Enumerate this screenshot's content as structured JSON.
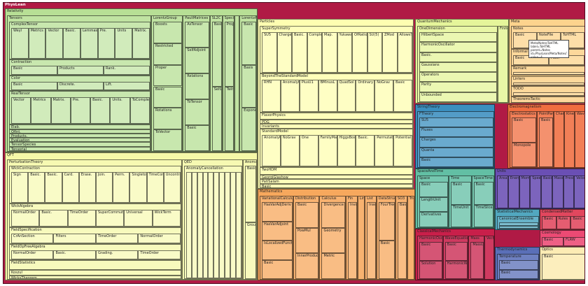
{
  "chart_data": {
    "type": "treemap",
    "root": "PhysLean",
    "groups": [
      {
        "name": "Relativity",
        "color": "#b7df95",
        "children": [
          {
            "name": "Tensors",
            "children": [
              {
                "name": "ComplexTensor",
                "children": [
                  "Weyl",
                  "Metrics",
                  "Vector",
                  "Basic.",
                  "Lemmas.",
                  "Pre.",
                  "Units",
                  "Matrix."
                ]
              },
              {
                "name": "Contraction",
                "children": [
                  "Basic",
                  "Products",
                  "Rank."
                ]
              },
              {
                "name": "Color",
                "children": [
                  "Basic",
                  "Discrete.",
                  "Lift."
                ]
              },
              {
                "name": "RealTensor",
                "children": [
                  "Vector",
                  "Metrics",
                  "Matrix.",
                  "Pre.",
                  "Basic.",
                  "Units.",
                  "ToComplex"
                ]
              },
              {
                "name": "Elab."
              },
              {
                "name": "OfInt."
              },
              {
                "name": "Products."
              },
              {
                "name": "Evaluation"
              },
              {
                "name": "TensorSpecies"
              },
              {
                "name": "Tensorial"
              }
            ]
          },
          {
            "name": "LorentzGroup",
            "children": [
              "Boosts",
              "Restricted",
              "Proper",
              "Basic",
              "Rotations",
              "ToVector"
            ]
          },
          {
            "name": "PauliMatrices",
            "children": [
              "AsTensor",
              "SelfAdjoint",
              "Relations",
              "ToTensor",
              "Basic"
            ]
          },
          {
            "name": "SL2C",
            "children": [
              "Basic",
              "SelfAdjoint"
            ]
          },
          {
            "name": "Special",
            "children": [
              "ProperTime",
              "TwinParadox"
            ]
          },
          {
            "name": "Bispinors"
          },
          {
            "name": "LorentzAlgebra",
            "children": [
              "Basic",
              "Basis",
              "ExponentialMap"
            ]
          }
        ]
      },
      {
        "name": "Particles",
        "color": "#fefeb1",
        "children": [
          {
            "name": "SuperSymmetry",
            "children": [
              "SU5",
              "Charges",
              "Basic.",
              "Completion",
              "Map.",
              "Yukawa",
              "OfRational",
              "SU(5)",
              "ZMod",
              "AllowsTerm"
            ]
          },
          {
            "name": "BeyondTheStandardModel",
            "children": [
              "RHN",
              "AnomalyCancellation",
              "PlusU1",
              "BMinusL",
              "QuadSol",
              "Ordinary",
              "NoGrav",
              "Basic"
            ]
          },
          {
            "name": "FlavorPhysics",
            "children": [
              "CKMMatrix"
            ]
          },
          {
            "name": "PDG"
          },
          {
            "name": "Invariants"
          },
          {
            "name": "StandardModel",
            "children": [
              "AnomalyCancellation",
              "NoGrav",
              "One",
              "FamilyMaps",
              "HiggsBoson",
              "Basic.",
              "Permutations",
              "Potential"
            ]
          },
          {
            "name": "TwoHDM",
            "children": [
              "GaugeOrbit"
            ]
          },
          {
            "name": "GeorgiGlashow"
          },
          {
            "name": "PatiSalam"
          },
          {
            "name": "Basic"
          }
        ]
      },
      {
        "name": "QuantumMechanics",
        "color": "#e5f59a",
        "children": [
          {
            "name": "OneDimension",
            "children": [
              "HilbertSpace",
              "HarmonicOscillator",
              "Basic.",
              "Gaussians",
              "Operators",
              "Parity",
              "Unbounded"
            ]
          },
          {
            "name": "FiniteTarget"
          }
        ]
      },
      {
        "name": "Meta",
        "color": "#fdd38d",
        "children": [
          {
            "name": "Notes",
            "children": [
              "Basic",
              "NoteFile",
              "ToHTML"
            ]
          },
          {
            "name": "Informal",
            "children": [
              "Basic",
              "Post."
            ]
          },
          {
            "name": "Remark",
            "children": [
              "Basic"
            ]
          },
          {
            "name": "Linters",
            "children": [
              "Sorry"
            ]
          },
          {
            "name": "TODO",
            "children": [
              "Basic"
            ]
          },
          {
            "name": "TheoremsTactic"
          }
        ]
      },
      {
        "name": "StringTheory",
        "color": "#3b8fbf",
        "children": [
          {
            "name": "FTheory",
            "children": [
              "SU5",
              "Fluxes",
              "Charges",
              "Quanta",
              "Basic"
            ]
          }
        ]
      },
      {
        "name": "ClassicalMechanics_",
        "label": "Electromagnetism",
        "color": "#f06e40",
        "children": [
          {
            "name": "Electrostatics",
            "children": [
              "Basic",
              "Monopole"
            ]
          },
          {
            "name": "PointParticle",
            "children": [
              "Basic"
            ]
          },
          {
            "name": "Charge"
          },
          {
            "name": "Kinematics"
          },
          {
            "name": "Wave"
          }
        ]
      },
      {
        "name": "SpaceAndTime",
        "color": "#62bfa4",
        "children": [
          {
            "name": "Space",
            "children": [
              "Basic",
              "LengthUnit",
              "Derivatives"
            ]
          },
          {
            "name": "Time",
            "children": [
              "Basic",
              "TimeUnit"
            ]
          },
          {
            "name": "SpaceTime",
            "children": [
              "Basic",
              "TimeSlice"
            ]
          }
        ]
      },
      {
        "name": "Units",
        "color": "#6a4fb4",
        "children": [
          "Area",
          "Energy",
          "Momentum",
          "Speed",
          "Basic",
          "Mass",
          "Pressure",
          "Velocity"
        ]
      },
      {
        "name": "StatisticalMechanics",
        "color": "#52a8c0",
        "children": [
          {
            "name": "CanonicalEnsemble",
            "children": [
              "Basic",
              "TwoState"
            ]
          }
        ]
      },
      {
        "name": "CondensedMatter",
        "color": "#e2475e",
        "children": [
          "Basic",
          "Rules",
          "Basic"
        ]
      },
      {
        "name": "Cosmology",
        "color": "#ec4a74",
        "children": [
          "Basic",
          "FLRW"
        ]
      },
      {
        "name": "ClassicalMechanics",
        "color": "#c81f4a",
        "children": [
          {
            "name": "HarmonicOscillator",
            "children": [
              "Basic",
              "Solution"
            ]
          },
          {
            "name": "WaveEquation",
            "children": [
              "Basic",
              "HarmonicWave"
            ]
          },
          {
            "name": "Mass",
            "children": [
              "MassUnit"
            ]
          },
          {
            "name": "VectorFields"
          }
        ]
      },
      {
        "name": "Thermodynamics",
        "color": "#5a6fb8",
        "children": [
          {
            "name": "Temperature",
            "children": [
              "Basic",
              "Basic"
            ]
          }
        ]
      },
      {
        "name": "Optics",
        "color": "#fcecb4",
        "children": [
          "Basic"
        ]
      },
      {
        "name": "QFT",
        "color": "#f5f8a8",
        "children": [
          {
            "name": "PerturbationTheory",
            "children": [
              {
                "name": "WickContraction",
                "children": [
                  "Sign",
                  "Basic.",
                  "Basic.",
                  "Card.",
                  "Erase.",
                  "Join.",
                  "Perm.",
                  "Singleton",
                  "TimeContract",
                  "Uncontracted"
                ]
              },
              {
                "name": "WickAlgebra",
                "children": [
                  "NormalOrder",
                  "Basic.",
                  "TimeOrder",
                  "SuperCommute",
                  "Universal",
                  "WickTerm"
                ]
              },
              {
                "name": "FieldSpecification",
                "children": [
                  "CrAnSection",
                  "Filters",
                  "TimeOrder",
                  "NormalOrder"
                ]
              },
              {
                "name": "FieldOpFreeAlgebra",
                "children": [
                  "NormalOrder",
                  "Basic.",
                  "Grading.",
                  "TimeOrder"
                ]
              },
              {
                "name": "FieldStatistics",
                "children": [
                  "Basic.",
                  "OfList"
                ]
              },
              {
                "name": "Koszul",
                "children": [
                  "KoszulSign"
                ]
              },
              {
                "name": "WicksTheorem"
              }
            ]
          },
          {
            "name": "QED",
            "children": [
              {
                "name": "AnomalyCancellation",
                "children": [
                  "Basic",
                  "Permutations",
                  "LowDim",
                  "Even",
                  "Odd",
                  "LineInCubic",
                  "Sorts",
                  "VectorLike",
                  "ConstAbs",
                  "BasisLinear"
                ]
              }
            ]
          },
          {
            "name": "AnomalyCancellation",
            "children": [
              "Basic",
              "GroupActions"
            ]
          }
        ]
      },
      {
        "name": "Mathematics",
        "color": "#f7a85d",
        "children": [
          {
            "name": "VariationalCalculus",
            "children": [
              "HasVarAdjDeriv",
              "HasVarAdjoint",
              "IsLocalizedFunction",
              "Basic"
            ]
          },
          {
            "name": "Distribution",
            "children": [
              "Basic",
              "PowMul",
              "InnerProductSpace"
            ]
          },
          {
            "name": "Calculus",
            "children": [
              "Divergence",
              "Geometry",
              "Metric"
            ]
          },
          {
            "name": "Fin",
            "children": [
              "Involutions"
            ]
          },
          {
            "name": "LinearMaps"
          },
          {
            "name": "List",
            "children": [
              "InsertionSort"
            ]
          },
          {
            "name": "DataStructures",
            "children": [
              "FourTree",
              "Basic"
            ]
          },
          {
            "name": "SO3",
            "children": [
              "Basic"
            ]
          },
          {
            "name": "Trigonometry"
          }
        ]
      }
    ],
    "tooltip": {
      "lines": [
        "Meta/Notes/ToHTML",
        "label=ToHTML",
        "parent=Notes",
        "id=PhysLean/Meta/Notes/ToHTML",
        "value=4"
      ]
    }
  }
}
